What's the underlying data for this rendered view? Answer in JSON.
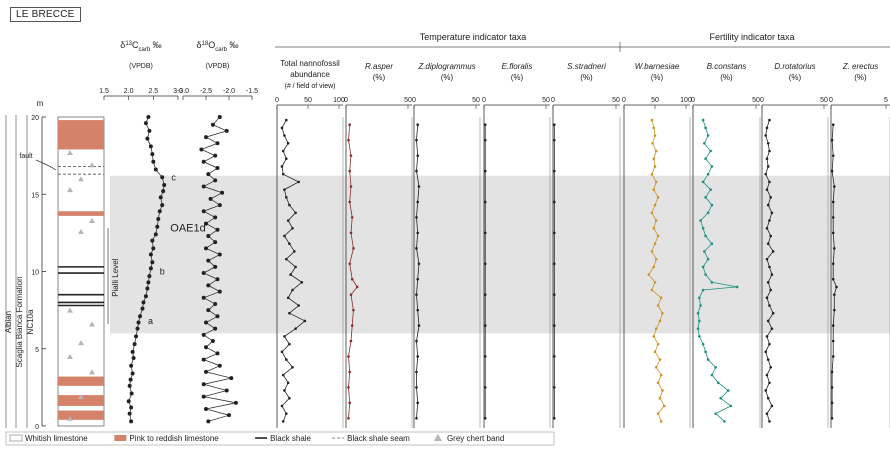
{
  "site": "LE BRECCE",
  "colors": {
    "pink_limestone": "#d4826a",
    "shade_band": "#e3e3e3",
    "r_asper": "#8a2b2b",
    "w_barnesiae": "#c9962a",
    "b_constans": "#1f8f80",
    "default_line": "#222222",
    "chert": "#b5b5b5"
  },
  "stratigraphy": {
    "age": "Albian",
    "formation": "Scaglia Bianca Formation",
    "zone": "NC10a",
    "pialli_label": "Pialli Level",
    "oae_label": "OAE1d",
    "fault_label": "fault",
    "points": [
      "a",
      "b",
      "c"
    ],
    "axis_unit": "m",
    "axis_ticks": [
      "0",
      "5",
      "10",
      "15",
      "20"
    ]
  },
  "isotopes": {
    "d13c": {
      "symbol": "δ",
      "sup": "13",
      "main": "C",
      "sub": "carb",
      "unit": " ‰",
      "ref": "(VPDB)",
      "ticks": [
        "1.5",
        "2.0",
        "2.5",
        "3.0"
      ]
    },
    "d18o": {
      "symbol": "δ",
      "sup": "18",
      "main": "O",
      "sub": "carb",
      "unit": " ‰",
      "ref": "(VPDB)",
      "ticks": [
        "-3.0",
        "-2.5",
        "-2.0",
        "-1.5"
      ]
    }
  },
  "group_headers": {
    "temperature": "Temperature indicator taxa",
    "fertility": "Fertility indicator taxa"
  },
  "panels": [
    {
      "key": "total",
      "title": "Total nannofossil",
      "title2": "abundance",
      "title3": "(# / field of view)",
      "ticks": [
        "0",
        "50",
        "100"
      ]
    },
    {
      "key": "rasper",
      "title": "R.asper",
      "title2": "(%)",
      "ticks": [
        "0",
        "50"
      ]
    },
    {
      "key": "zdip",
      "title": "Z.diplogrammus",
      "title2": "(%)",
      "ticks": [
        "0",
        "50"
      ]
    },
    {
      "key": "eflor",
      "title": "E.floralis",
      "title2": "(%)",
      "ticks": [
        "0",
        "50"
      ]
    },
    {
      "key": "sstrad",
      "title": "S.stradneri",
      "title2": "(%)",
      "ticks": [
        "0",
        "50"
      ]
    },
    {
      "key": "wbarn",
      "title": "W.barnesiae",
      "title2": "(%)",
      "ticks": [
        "0",
        "50",
        "100"
      ]
    },
    {
      "key": "bcons",
      "title": "B.constans",
      "title2": "(%)",
      "ticks": [
        "0",
        "50"
      ]
    },
    {
      "key": "drot",
      "title": "D.rotatorius",
      "title2": "(%)",
      "ticks": [
        "0",
        "50"
      ]
    },
    {
      "key": "zerect",
      "title": "Z. erectus",
      "title2": "(%)",
      "ticks": [
        "0",
        "5"
      ]
    }
  ],
  "legend": [
    {
      "symbol": "whitish",
      "label": "Whitish limestone"
    },
    {
      "symbol": "pink",
      "label": "Pink to reddish limestone"
    },
    {
      "symbol": "black_shale",
      "label": "Black shale"
    },
    {
      "symbol": "shale_seam",
      "label": "Black shale seam"
    },
    {
      "symbol": "chert",
      "label": "Grey chert band"
    }
  ],
  "chart_data": {
    "type": "line",
    "y_axis": {
      "label": "m",
      "range": [
        0,
        20
      ]
    },
    "shaded_interval_m": [
      6.0,
      16.2
    ],
    "pink_beds_m": [
      [
        0.4,
        1.0
      ],
      [
        1.3,
        2.0
      ],
      [
        2.6,
        3.2
      ],
      [
        13.6,
        13.9
      ],
      [
        17.9,
        19.8
      ]
    ],
    "black_shale_m": [
      7.8,
      8.0,
      8.5,
      9.9,
      10.3
    ],
    "shale_seam_m": [
      16.3,
      16.8
    ],
    "chert_m": [
      0.5,
      1.9,
      3.5,
      4.5,
      5.4,
      6.6,
      7.5,
      12.6,
      13.3,
      15.3,
      16.0,
      16.9,
      17.7
    ],
    "d13c": {
      "depth": [
        0.3,
        0.8,
        1.2,
        1.6,
        2.1,
        2.6,
        3.0,
        3.4,
        3.9,
        4.4,
        4.8,
        5.3,
        5.8,
        6.3,
        6.7,
        7.1,
        7.6,
        8.0,
        8.4,
        8.9,
        9.3,
        9.7,
        10.2,
        10.6,
        11.1,
        11.5,
        12.0,
        12.4,
        12.9,
        13.4,
        13.9,
        14.3,
        14.8,
        15.2,
        15.6,
        16.1,
        16.6,
        17.1,
        17.6,
        18.1,
        18.6,
        19.1,
        19.6,
        20.0
      ],
      "value": [
        2.05,
        2.02,
        2.05,
        2.0,
        2.06,
        2.02,
        2.04,
        2.08,
        2.05,
        2.1,
        2.08,
        2.12,
        2.15,
        2.18,
        2.2,
        2.23,
        2.28,
        2.3,
        2.35,
        2.38,
        2.4,
        2.42,
        2.45,
        2.48,
        2.45,
        2.5,
        2.48,
        2.55,
        2.58,
        2.6,
        2.63,
        2.68,
        2.65,
        2.7,
        2.72,
        2.68,
        2.55,
        2.5,
        2.48,
        2.45,
        2.38,
        2.42,
        2.35,
        2.4
      ]
    },
    "d18o": {
      "depth": [
        0.3,
        0.7,
        1.1,
        1.5,
        1.9,
        2.3,
        2.7,
        3.1,
        3.5,
        3.9,
        4.3,
        4.7,
        5.1,
        5.5,
        5.9,
        6.3,
        6.7,
        7.1,
        7.5,
        7.9,
        8.3,
        8.7,
        9.1,
        9.5,
        9.9,
        10.3,
        10.7,
        11.1,
        11.5,
        11.9,
        12.3,
        12.7,
        13.1,
        13.5,
        13.9,
        14.3,
        14.7,
        15.1,
        15.5,
        15.9,
        16.3,
        16.7,
        17.1,
        17.5,
        17.9,
        18.3,
        18.7,
        19.1,
        19.5,
        20.0
      ],
      "value": [
        -2.45,
        -2.0,
        -2.5,
        -1.85,
        -2.55,
        -2.05,
        -2.55,
        -1.95,
        -2.5,
        -2.2,
        -2.55,
        -2.25,
        -2.5,
        -2.35,
        -2.55,
        -2.3,
        -2.5,
        -2.25,
        -2.45,
        -2.3,
        -2.55,
        -2.2,
        -2.45,
        -2.25,
        -2.55,
        -2.3,
        -2.45,
        -2.2,
        -2.5,
        -2.3,
        -2.45,
        -2.25,
        -2.5,
        -2.3,
        -2.55,
        -2.2,
        -2.4,
        -2.15,
        -2.55,
        -2.3,
        -2.45,
        -2.25,
        -2.55,
        -2.3,
        -2.6,
        -2.25,
        -2.5,
        -2.05,
        -2.35,
        -2.2
      ]
    },
    "species": {
      "total": {
        "max": 100,
        "depth": [
          0.3,
          0.8,
          1.3,
          1.8,
          2.3,
          2.8,
          3.3,
          3.8,
          4.3,
          4.8,
          5.3,
          5.8,
          6.3,
          6.8,
          7.3,
          7.8,
          8.3,
          8.8,
          9.3,
          9.8,
          10.3,
          10.8,
          11.3,
          11.8,
          12.3,
          12.8,
          13.3,
          13.8,
          14.3,
          14.8,
          15.3,
          15.8,
          16.3,
          16.8,
          17.3,
          17.8,
          18.3,
          18.8,
          19.3,
          19.8
        ],
        "value": [
          10,
          15,
          8,
          20,
          12,
          18,
          10,
          25,
          15,
          8,
          20,
          12,
          30,
          45,
          20,
          35,
          18,
          25,
          40,
          22,
          30,
          15,
          28,
          20,
          12,
          25,
          18,
          30,
          20,
          15,
          12,
          35,
          10,
          8,
          15,
          10,
          18,
          12,
          8,
          15
        ]
      },
      "rasper": {
        "max": 50,
        "depth": [
          0.5,
          1.5,
          2.5,
          3.5,
          4.5,
          5.5,
          6.5,
          7.5,
          8.5,
          9.0,
          9.5,
          10.5,
          11.5,
          12.5,
          13.5,
          14.5,
          15.5,
          16.5,
          17.5,
          18.5,
          19.5
        ],
        "value": [
          2,
          3,
          2,
          3,
          2,
          4,
          5,
          6,
          4,
          9,
          5,
          3,
          6,
          4,
          5,
          3,
          4,
          3,
          4,
          2,
          3
        ]
      },
      "zdip": {
        "max": 50,
        "depth": [
          0.5,
          1.5,
          2.5,
          3.5,
          4.5,
          5.5,
          6.5,
          7.5,
          8.5,
          9.5,
          10.5,
          11.5,
          12.5,
          13.5,
          14.5,
          15.5,
          16.5,
          17.5,
          18.5,
          19.5
        ],
        "value": [
          2,
          3,
          2,
          2,
          3,
          2,
          4,
          3,
          2,
          3,
          4,
          2,
          3,
          2,
          3,
          4,
          2,
          3,
          2,
          3
        ]
      },
      "eflor": {
        "max": 50,
        "depth": [
          0.5,
          2.5,
          4.5,
          6.5,
          8.5,
          10.5,
          12.5,
          14.5,
          16.5,
          18.5,
          19.5
        ],
        "value": [
          1,
          1,
          1,
          1,
          1,
          1,
          1,
          1,
          1,
          1,
          1
        ]
      },
      "sstrad": {
        "max": 50,
        "depth": [
          0.5,
          2.5,
          4.5,
          6.5,
          8.5,
          10.5,
          12.5,
          14.5,
          16.5,
          18.5,
          19.5
        ],
        "value": [
          1,
          1,
          1,
          1,
          1,
          1,
          1,
          1,
          1,
          1,
          1
        ]
      },
      "wbarn": {
        "max": 100,
        "depth": [
          0.3,
          0.8,
          1.3,
          1.8,
          2.3,
          2.8,
          3.3,
          3.8,
          4.3,
          4.8,
          5.3,
          5.8,
          6.3,
          6.8,
          7.3,
          7.8,
          8.3,
          8.8,
          9.3,
          9.8,
          10.3,
          10.8,
          11.3,
          11.8,
          12.3,
          12.8,
          13.3,
          13.8,
          14.3,
          14.8,
          15.3,
          15.8,
          16.3,
          16.8,
          17.3,
          17.8,
          18.3,
          18.8,
          19.3,
          19.8
        ],
        "value": [
          60,
          55,
          65,
          58,
          62,
          55,
          60,
          52,
          58,
          50,
          55,
          48,
          52,
          58,
          62,
          55,
          60,
          45,
          50,
          40,
          48,
          52,
          45,
          50,
          55,
          48,
          52,
          45,
          50,
          55,
          48,
          52,
          45,
          50,
          48,
          52,
          46,
          50,
          48,
          45
        ]
      },
      "bcons": {
        "max": 50,
        "depth": [
          0.3,
          0.8,
          1.3,
          1.8,
          2.3,
          2.8,
          3.3,
          3.8,
          4.3,
          4.8,
          5.3,
          5.8,
          6.3,
          6.8,
          7.3,
          7.8,
          8.3,
          8.8,
          9.0,
          9.3,
          9.8,
          10.3,
          10.8,
          11.3,
          11.8,
          12.3,
          12.8,
          13.3,
          13.8,
          14.3,
          14.8,
          15.3,
          15.8,
          16.3,
          16.8,
          17.3,
          17.8,
          18.3,
          18.8,
          19.3,
          19.8
        ],
        "value": [
          25,
          18,
          30,
          22,
          28,
          20,
          15,
          18,
          12,
          10,
          8,
          5,
          4,
          5,
          4,
          6,
          5,
          8,
          35,
          15,
          10,
          8,
          12,
          9,
          15,
          10,
          8,
          6,
          12,
          15,
          10,
          14,
          8,
          12,
          15,
          10,
          14,
          9,
          12,
          10,
          8
        ]
      },
      "drot": {
        "max": 50,
        "depth": [
          0.3,
          0.8,
          1.3,
          1.8,
          2.3,
          2.8,
          3.3,
          3.8,
          4.3,
          4.8,
          5.3,
          5.8,
          6.3,
          6.8,
          7.3,
          7.8,
          8.3,
          8.8,
          9.3,
          9.8,
          10.3,
          10.8,
          11.3,
          11.8,
          12.3,
          12.8,
          13.3,
          13.8,
          14.3,
          14.8,
          15.3,
          15.8,
          16.3,
          16.8,
          17.3,
          17.8,
          18.3,
          18.8,
          19.3,
          19.8
        ],
        "value": [
          6,
          4,
          8,
          5,
          3,
          6,
          4,
          7,
          5,
          3,
          6,
          4,
          8,
          5,
          9,
          6,
          4,
          7,
          5,
          8,
          6,
          4,
          9,
          5,
          7,
          4,
          6,
          8,
          5,
          7,
          4,
          6,
          3,
          5,
          4,
          6,
          5,
          3,
          4,
          6
        ]
      },
      "zerect": {
        "max": 5,
        "depth": [
          0.5,
          1.5,
          2.5,
          3.5,
          4.5,
          5.5,
          6.5,
          7.5,
          8.5,
          9.0,
          9.5,
          10.5,
          11.5,
          12.5,
          13.5,
          14.5,
          15.5,
          16.5,
          17.5,
          18.5,
          19.5
        ],
        "value": [
          0.1,
          0.1,
          0.1,
          0.1,
          0.2,
          0.2,
          0.2,
          0.3,
          0.3,
          0.5,
          0.2,
          0.2,
          0.3,
          0.2,
          0.2,
          0.2,
          0.3,
          0.1,
          0.2,
          0.1,
          0.2
        ]
      }
    }
  }
}
